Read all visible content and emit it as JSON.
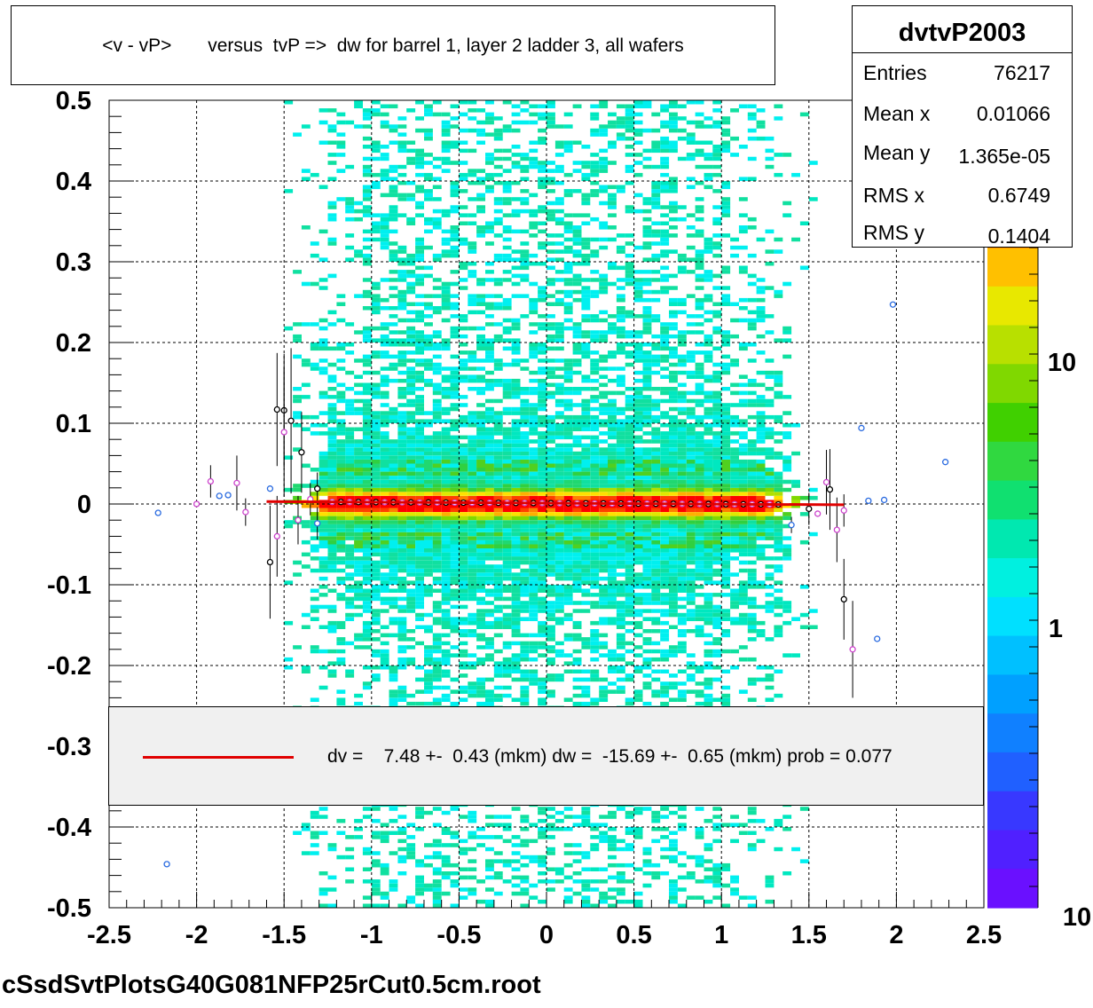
{
  "title": "<v - vP>       versus  tvP =>  dw for barrel 1, layer 2 ladder 3, all wafers",
  "file_label": "cSsdSvtPlotsG40G081NFP25rCut0.5cm.root",
  "stats": {
    "name": "dvtvP2003",
    "rows": [
      {
        "key": "Entries",
        "value": "76217"
      },
      {
        "key": "Mean x",
        "value": "0.01066"
      },
      {
        "key": "Mean y",
        "value": "1.365e-05"
      },
      {
        "key": "RMS x",
        "value": "0.6749"
      },
      {
        "key": "RMS y",
        "value": "0.1404"
      }
    ]
  },
  "legend": {
    "text": "dv =    7.48 +-  0.43 (mkm) dw =  -15.69 +-  0.65 (mkm) prob = 0.077",
    "line_color": "#e00000"
  },
  "palette_labels": [
    "10",
    "1",
    "10"
  ],
  "chart_data": {
    "type": "heatmap",
    "title": "<v - vP>       versus  tvP =>  dw for barrel 1, layer 2 ladder 3, all wafers",
    "xlim": [
      -2.5,
      2.5
    ],
    "ylim": [
      -0.5,
      0.5
    ],
    "x_ticks": [
      "-2.5",
      "-2",
      "-1.5",
      "-1",
      "-0.5",
      "0",
      "0.5",
      "1",
      "1.5",
      "2",
      "2.5"
    ],
    "y_ticks": [
      "-0.5",
      "-0.4",
      "-0.3",
      "-0.2",
      "-0.1",
      "0",
      "0.1",
      "0.2",
      "0.3",
      "0.4",
      "0.5"
    ],
    "grid": true,
    "z_scale": "log",
    "fit_line": {
      "x_range": [
        -1.6,
        1.7
      ],
      "y_start": 0.003,
      "y_end": -0.001,
      "color": "#e00000"
    },
    "profile_points": [
      {
        "x": -2.22,
        "y": -0.011,
        "err": 0,
        "color": "#2a6be0"
      },
      {
        "x": -2.0,
        "y": 0.0,
        "err": 0,
        "color": "#cc44cc"
      },
      {
        "x": -1.92,
        "y": 0.028,
        "err": 0.02,
        "color": "#cc44cc"
      },
      {
        "x": -1.87,
        "y": 0.01,
        "err": 0,
        "color": "#2a6be0"
      },
      {
        "x": -1.82,
        "y": 0.011,
        "err": 0,
        "color": "#2a6be0"
      },
      {
        "x": -1.77,
        "y": 0.026,
        "err": 0.034,
        "color": "#cc44cc"
      },
      {
        "x": -1.72,
        "y": -0.01,
        "err": 0.017,
        "color": "#cc44cc"
      },
      {
        "x": -1.58,
        "y": 0.019,
        "err": 0,
        "color": "#2a6be0"
      },
      {
        "x": -1.58,
        "y": -0.072,
        "err": 0.07,
        "color": "#000000"
      },
      {
        "x": -1.54,
        "y": 0.117,
        "err": 0.07,
        "color": "#000000"
      },
      {
        "x": -1.54,
        "y": -0.04,
        "err": 0.05,
        "color": "#cc44cc"
      },
      {
        "x": -1.5,
        "y": 0.116,
        "err": 0.07,
        "color": "#000000"
      },
      {
        "x": -1.5,
        "y": 0.089,
        "err": 0.08,
        "color": "#cc44cc"
      },
      {
        "x": -1.46,
        "y": 0.103,
        "err": 0.09,
        "color": "#000000"
      },
      {
        "x": -1.42,
        "y": -0.02,
        "err": 0.03,
        "color": "#cc44cc"
      },
      {
        "x": -1.4,
        "y": 0.064,
        "err": 0.05,
        "color": "#000000"
      },
      {
        "x": -1.35,
        "y": 0.006,
        "err": 0.02,
        "color": "#cc44cc"
      },
      {
        "x": -1.31,
        "y": 0.019,
        "err": 0.02,
        "color": "#000000"
      },
      {
        "x": -1.31,
        "y": -0.024,
        "err": 0.02,
        "color": "#2a6be0"
      },
      {
        "x": 1.4,
        "y": -0.026,
        "err": 0.01,
        "color": "#2a6be0"
      },
      {
        "x": 1.5,
        "y": -0.006,
        "err": 0.02,
        "color": "#000000"
      },
      {
        "x": 1.55,
        "y": -0.012,
        "err": 0,
        "color": "#cc44cc"
      },
      {
        "x": 1.6,
        "y": 0.027,
        "err": 0.04,
        "color": "#cc44cc"
      },
      {
        "x": 1.62,
        "y": 0.018,
        "err": 0.05,
        "color": "#000000"
      },
      {
        "x": 1.66,
        "y": -0.032,
        "err": 0.04,
        "color": "#cc44cc"
      },
      {
        "x": 1.7,
        "y": -0.008,
        "err": 0.02,
        "color": "#cc44cc"
      },
      {
        "x": 1.7,
        "y": -0.118,
        "err": 0.05,
        "color": "#000000"
      },
      {
        "x": 1.75,
        "y": -0.18,
        "err": 0.06,
        "color": "#cc44cc"
      },
      {
        "x": 1.8,
        "y": 0.094,
        "err": 0,
        "color": "#2a6be0"
      },
      {
        "x": 1.84,
        "y": 0.004,
        "err": 0,
        "color": "#2a6be0"
      },
      {
        "x": 1.89,
        "y": -0.167,
        "err": 0,
        "color": "#2a6be0"
      },
      {
        "x": 1.93,
        "y": 0.005,
        "err": 0,
        "color": "#2a6be0"
      },
      {
        "x": 1.98,
        "y": 0.247,
        "err": 0,
        "color": "#2a6be0"
      },
      {
        "x": 2.28,
        "y": 0.052,
        "err": 0,
        "color": "#2a6be0"
      },
      {
        "x": -2.17,
        "y": -0.446,
        "err": 0,
        "color": "#2a6be0"
      }
    ]
  }
}
